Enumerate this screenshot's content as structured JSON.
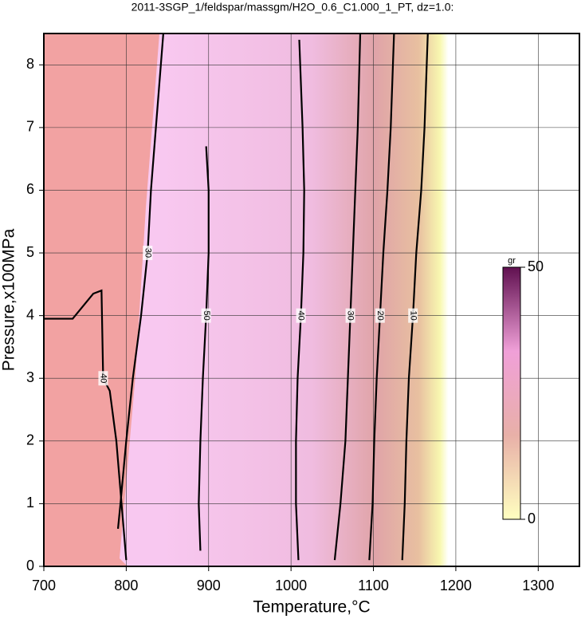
{
  "chart_data": {
    "type": "contour",
    "title": "2011-3SGP_1/feldspar/massgm/H2O_0.6_C1.000_1_PT, dz=1.0:",
    "x_label": "Temperature,°C",
    "y_label": "Pressure,x100MPa",
    "xlim": [
      700,
      1350
    ],
    "ylim": [
      0,
      8.5
    ],
    "xticks": [
      700,
      800,
      900,
      1000,
      1100,
      1200,
      1300
    ],
    "yticks": [
      0,
      1,
      2,
      3,
      4,
      5,
      6,
      7,
      8
    ],
    "grid": true,
    "contours": [
      {
        "level": 10,
        "x": [
          1135,
          1138,
          1140,
          1143,
          1148,
          1152,
          1158,
          1162,
          1166
        ],
        "y": [
          0.1,
          1,
          2,
          3,
          4,
          5,
          6,
          7,
          8.5
        ]
      },
      {
        "level": 20,
        "x": [
          1095,
          1099,
          1101,
          1104,
          1108,
          1112,
          1117,
          1121,
          1125
        ],
        "y": [
          0.1,
          1,
          2,
          3,
          4,
          5,
          6,
          7,
          8.5
        ]
      },
      {
        "level": 30,
        "x": [
          1053,
          1060,
          1066,
          1069,
          1072,
          1075,
          1078,
          1081,
          1084
        ],
        "y": [
          0.1,
          1,
          2,
          3,
          4,
          5,
          6,
          7,
          8.5
        ]
      },
      {
        "level": 40,
        "x": [
          1009,
          1006,
          1006,
          1008,
          1012,
          1015,
          1016,
          1014,
          1010
        ],
        "y": [
          0.1,
          1,
          2,
          3,
          4,
          5,
          6,
          7,
          8.4
        ]
      },
      {
        "level": 50,
        "x": [
          890,
          888,
          890,
          893,
          897,
          900,
          900,
          897
        ],
        "y": [
          0.25,
          1,
          2,
          3,
          4,
          5,
          6,
          6.7
        ]
      },
      {
        "level": 30,
        "x": [
          790,
          793,
          800,
          808,
          818,
          826,
          830,
          836,
          842,
          845
        ],
        "y": [
          0.6,
          1,
          2,
          3,
          4,
          5,
          6,
          7,
          8,
          8.5
        ]
      },
      {
        "level": 40,
        "x": [
          700,
          735,
          760,
          770,
          772,
          780,
          788,
          800
        ],
        "y": [
          3.95,
          3.95,
          4.35,
          4.4,
          3,
          2.8,
          2,
          0.1
        ]
      }
    ],
    "colorbar": {
      "label": "gr",
      "lim": [
        0,
        50
      ],
      "ticks": [
        0,
        50
      ],
      "colors": [
        "#ffffc0",
        "#e8b0a8",
        "#f0a0d8",
        "#601050"
      ]
    }
  }
}
